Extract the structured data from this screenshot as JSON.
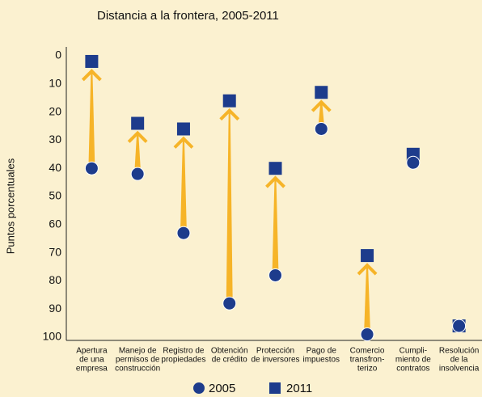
{
  "chart_data": {
    "type": "dumbbell-arrow",
    "title": "Distancia a la frontera, 2005-2011",
    "y_label": "Puntos porcentuales",
    "categories": [
      [
        "Apertura",
        "de una",
        "empresa"
      ],
      [
        "Manejo de",
        "permisos de",
        "construcción"
      ],
      [
        "Registro de",
        "propiedades"
      ],
      [
        "Obtención",
        "de crédito"
      ],
      [
        "Protección",
        "de inversores"
      ],
      [
        "Pago de",
        "impuestos"
      ],
      [
        "Comercio",
        "transfron-",
        "terizo"
      ],
      [
        "Cumpli-",
        "miento de",
        "contratos"
      ],
      [
        "Resolución",
        "de la",
        "insolvencia"
      ]
    ],
    "series": [
      {
        "name": "2005",
        "marker": "circle",
        "color": "#1d3c8c",
        "values": [
          40,
          42,
          63,
          88,
          78,
          26,
          99,
          38,
          96
        ]
      },
      {
        "name": "2011",
        "marker": "square",
        "color": "#1d3c8c",
        "values": [
          2,
          24,
          26,
          16,
          40,
          13,
          71,
          35,
          96
        ]
      }
    ],
    "arrow_color": "#f6b428",
    "ylim": [
      0,
      100
    ],
    "y_inverted": true,
    "yticks": [
      0,
      10,
      20,
      30,
      40,
      50,
      60,
      70,
      80,
      90,
      100
    ]
  }
}
